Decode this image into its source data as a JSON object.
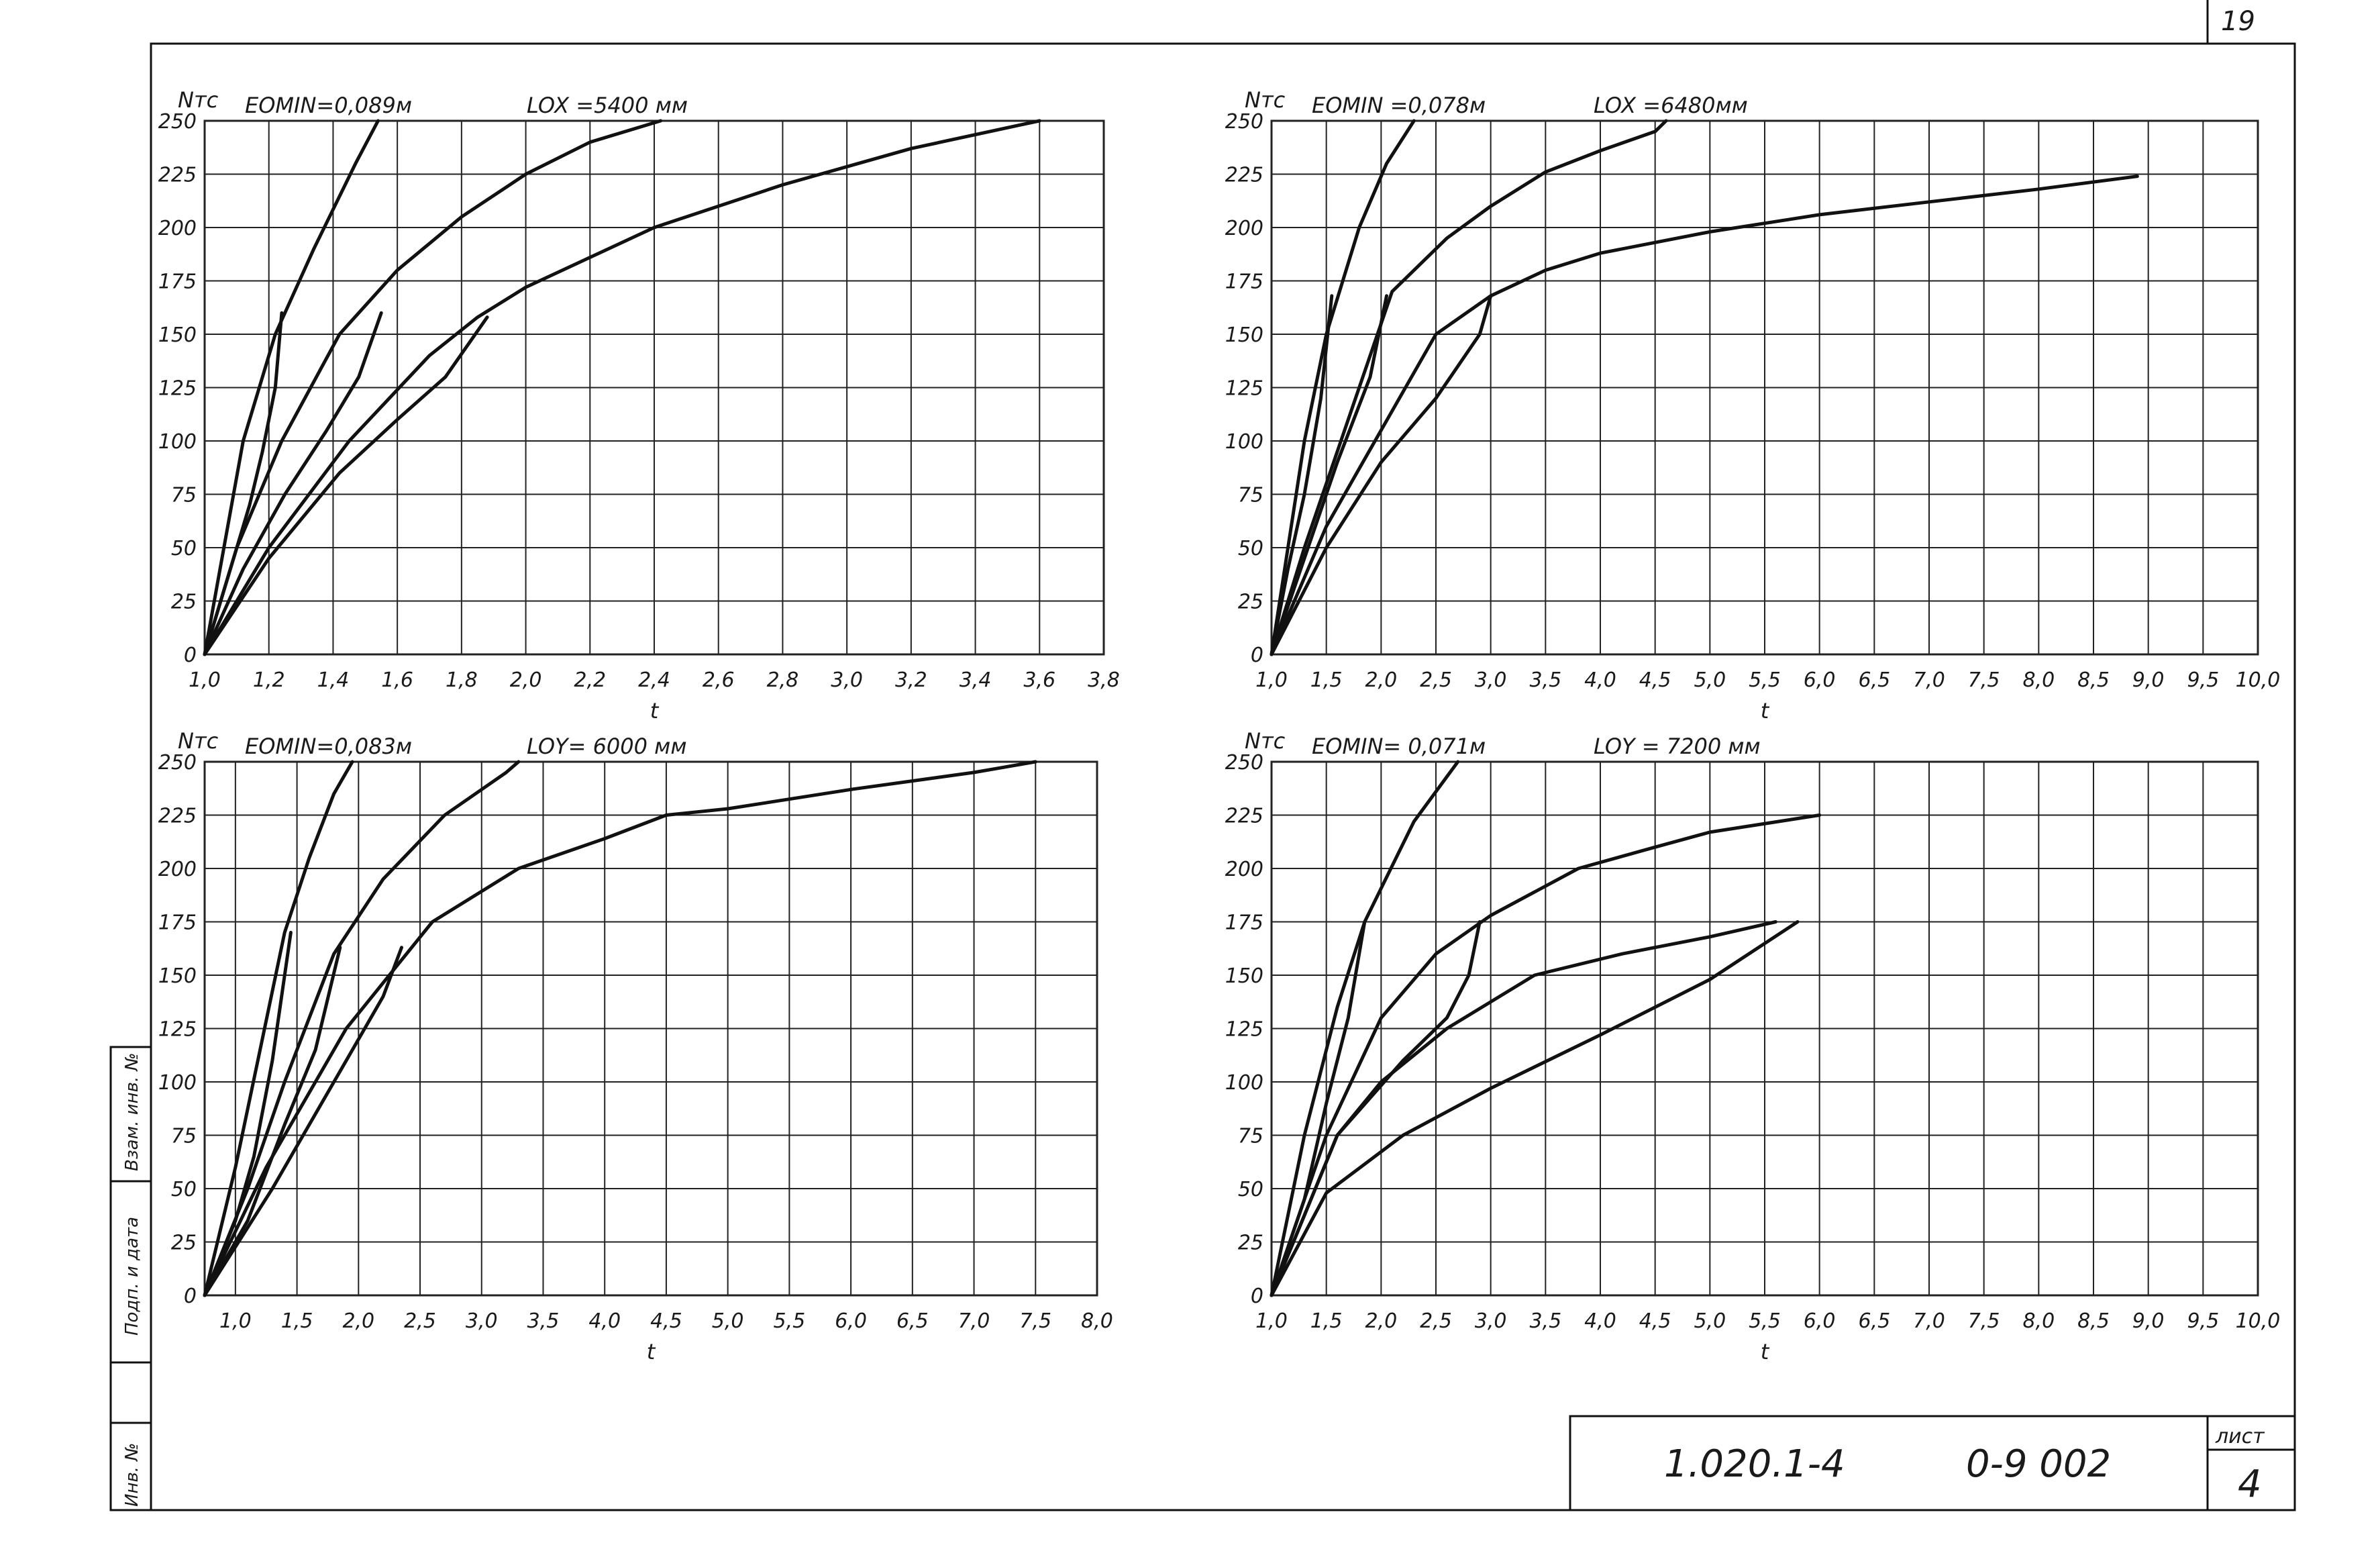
{
  "sheet": {
    "page_number": "19",
    "doc_code": "1.020.1-4",
    "doc_series": "0-9 002",
    "sheet_label": "лист",
    "sheet_number": "4",
    "stamp_labels": [
      "Инв. №",
      "Подп. и дата",
      "Взам. инв. №"
    ]
  },
  "chart_data": [
    {
      "type": "line",
      "ylabel": "Nтс",
      "xlabel": "t",
      "param1": "EOMIN=0,089м",
      "param2": "LOX =5400 мм",
      "xlim": [
        1.0,
        3.8
      ],
      "ylim": [
        0,
        250
      ],
      "x_ticks": [
        "1,0",
        "1,2",
        "1,4",
        "1,6",
        "1,8",
        "2,0",
        "2,2",
        "2,4",
        "2,6",
        "2,8",
        "3,0",
        "3,2",
        "3,4",
        "3,6",
        "3,8"
      ],
      "y_ticks": [
        "0",
        "25",
        "50",
        "75",
        "100",
        "125",
        "150",
        "175",
        "200",
        "225",
        "250"
      ],
      "series": [
        {
          "points": [
            [
              1.0,
              0
            ],
            [
              1.06,
              50
            ],
            [
              1.12,
              100
            ],
            [
              1.17,
              125
            ],
            [
              1.22,
              150
            ],
            [
              1.34,
              190
            ],
            [
              1.47,
              230
            ],
            [
              1.54,
              250
            ]
          ]
        },
        {
          "points": [
            [
              1.0,
              0
            ],
            [
              1.1,
              50
            ],
            [
              1.24,
              100
            ],
            [
              1.42,
              150
            ],
            [
              1.6,
              180
            ],
            [
              1.8,
              205
            ],
            [
              2.0,
              225
            ],
            [
              2.2,
              240
            ],
            [
              2.42,
              250
            ]
          ]
        },
        {
          "points": [
            [
              1.0,
              0
            ],
            [
              1.2,
              50
            ],
            [
              1.45,
              100
            ],
            [
              1.7,
              140
            ],
            [
              1.85,
              158
            ],
            [
              2.0,
              172
            ],
            [
              2.4,
              200
            ],
            [
              2.8,
              220
            ],
            [
              3.2,
              237
            ],
            [
              3.6,
              250
            ]
          ]
        },
        {
          "points": [
            [
              1.0,
              0
            ],
            [
              1.05,
              25
            ],
            [
              1.1,
              50
            ],
            [
              1.14,
              70
            ],
            [
              1.18,
              95
            ],
            [
              1.22,
              125
            ],
            [
              1.24,
              160
            ]
          ]
        },
        {
          "points": [
            [
              1.0,
              0
            ],
            [
              1.12,
              40
            ],
            [
              1.25,
              75
            ],
            [
              1.38,
              105
            ],
            [
              1.48,
              130
            ],
            [
              1.55,
              160
            ]
          ]
        },
        {
          "points": [
            [
              1.0,
              0
            ],
            [
              1.2,
              45
            ],
            [
              1.42,
              85
            ],
            [
              1.6,
              110
            ],
            [
              1.75,
              130
            ],
            [
              1.88,
              158
            ]
          ]
        }
      ]
    },
    {
      "type": "line",
      "ylabel": "Nтс",
      "xlabel": "t",
      "param1": "EOMIN =0,078м",
      "param2": "LOX =6480мм",
      "xlim": [
        1.0,
        10.0
      ],
      "ylim": [
        0,
        250
      ],
      "x_ticks": [
        "1,0",
        "1,5",
        "2,0",
        "2,5",
        "3,0",
        "3,5",
        "4,0",
        "4,5",
        "5,0",
        "5,5",
        "6,0",
        "6,5",
        "7,0",
        "7,5",
        "8,0",
        "8,5",
        "9,0",
        "9,5",
        "10,0"
      ],
      "y_ticks": [
        "0",
        "25",
        "50",
        "75",
        "100",
        "125",
        "150",
        "175",
        "200",
        "225",
        "250"
      ],
      "series": [
        {
          "points": [
            [
              1.0,
              0
            ],
            [
              1.15,
              50
            ],
            [
              1.3,
              100
            ],
            [
              1.5,
              150
            ],
            [
              1.8,
              200
            ],
            [
              2.05,
              230
            ],
            [
              2.3,
              250
            ]
          ]
        },
        {
          "points": [
            [
              1.0,
              0
            ],
            [
              1.3,
              50
            ],
            [
              1.7,
              110
            ],
            [
              2.1,
              170
            ],
            [
              2.6,
              195
            ],
            [
              3.0,
              210
            ],
            [
              3.5,
              226
            ],
            [
              4.0,
              236
            ],
            [
              4.5,
              245
            ],
            [
              4.6,
              250
            ]
          ]
        },
        {
          "points": [
            [
              1.0,
              0
            ],
            [
              1.5,
              60
            ],
            [
              2.0,
              105
            ],
            [
              2.5,
              150
            ],
            [
              3.0,
              168
            ],
            [
              3.5,
              180
            ],
            [
              4.0,
              188
            ],
            [
              5.0,
              198
            ],
            [
              6.0,
              206
            ],
            [
              7.0,
              212
            ],
            [
              8.0,
              218
            ],
            [
              8.9,
              224
            ]
          ]
        },
        {
          "points": [
            [
              1.0,
              0
            ],
            [
              1.15,
              40
            ],
            [
              1.3,
              75
            ],
            [
              1.45,
              120
            ],
            [
              1.55,
              168
            ]
          ]
        },
        {
          "points": [
            [
              1.0,
              0
            ],
            [
              1.3,
              45
            ],
            [
              1.6,
              90
            ],
            [
              1.9,
              130
            ],
            [
              2.05,
              168
            ]
          ]
        },
        {
          "points": [
            [
              1.0,
              0
            ],
            [
              1.5,
              50
            ],
            [
              2.0,
              90
            ],
            [
              2.5,
              120
            ],
            [
              2.9,
              150
            ],
            [
              3.0,
              168
            ]
          ]
        }
      ]
    },
    {
      "type": "line",
      "ylabel": "Nтс",
      "xlabel": "t",
      "param1": "EOMIN=0,083м",
      "param2": "LOY= 6000 мм",
      "xlim": [
        0.75,
        8.0
      ],
      "ylim": [
        0,
        250
      ],
      "x_ticks": [
        "1,0",
        "1,5",
        "2,0",
        "2,5",
        "3,0",
        "3,5",
        "4,0",
        "4,5",
        "5,0",
        "5,5",
        "6,0",
        "6,5",
        "7,0",
        "7,5",
        "8,0"
      ],
      "y_ticks": [
        "0",
        "25",
        "50",
        "75",
        "100",
        "125",
        "150",
        "175",
        "200",
        "225",
        "250"
      ],
      "series": [
        {
          "points": [
            [
              0.75,
              0
            ],
            [
              1.0,
              60
            ],
            [
              1.2,
              115
            ],
            [
              1.4,
              170
            ],
            [
              1.6,
              205
            ],
            [
              1.8,
              235
            ],
            [
              1.95,
              250
            ]
          ]
        },
        {
          "points": [
            [
              0.75,
              0
            ],
            [
              1.1,
              50
            ],
            [
              1.4,
              100
            ],
            [
              1.8,
              160
            ],
            [
              2.2,
              195
            ],
            [
              2.7,
              225
            ],
            [
              3.2,
              245
            ],
            [
              3.3,
              250
            ]
          ]
        },
        {
          "points": [
            [
              0.75,
              0
            ],
            [
              1.25,
              60
            ],
            [
              1.9,
              125
            ],
            [
              2.6,
              175
            ],
            [
              3.3,
              200
            ],
            [
              4.0,
              214
            ],
            [
              4.5,
              225
            ],
            [
              5.0,
              228
            ],
            [
              6.0,
              237
            ],
            [
              7.0,
              245
            ],
            [
              7.5,
              250
            ]
          ]
        },
        {
          "points": [
            [
              0.75,
              0
            ],
            [
              1.0,
              35
            ],
            [
              1.15,
              65
            ],
            [
              1.3,
              110
            ],
            [
              1.45,
              170
            ]
          ]
        },
        {
          "points": [
            [
              0.75,
              0
            ],
            [
              1.1,
              35
            ],
            [
              1.4,
              80
            ],
            [
              1.65,
              115
            ],
            [
              1.85,
              163
            ]
          ]
        },
        {
          "points": [
            [
              0.75,
              0
            ],
            [
              1.3,
              50
            ],
            [
              1.9,
              110
            ],
            [
              2.2,
              140
            ],
            [
              2.35,
              163
            ]
          ]
        }
      ]
    },
    {
      "type": "line",
      "ylabel": "Nтс",
      "xlabel": "t",
      "param1": "EOMIN= 0,071м",
      "param2": "LOY = 7200 мм",
      "xlim": [
        1.0,
        10.0
      ],
      "ylim": [
        0,
        250
      ],
      "x_ticks": [
        "1,0",
        "1,5",
        "2,0",
        "2,5",
        "3,0",
        "3,5",
        "4,0",
        "4,5",
        "5,0",
        "5,5",
        "6,0",
        "6,5",
        "7,0",
        "7,5",
        "8,0",
        "8,5",
        "9,0",
        "9,5",
        "10,0"
      ],
      "y_ticks": [
        "0",
        "25",
        "50",
        "75",
        "100",
        "125",
        "150",
        "175",
        "200",
        "225",
        "250"
      ],
      "series": [
        {
          "points": [
            [
              1.0,
              0
            ],
            [
              1.3,
              75
            ],
            [
              1.6,
              135
            ],
            [
              1.85,
              175
            ],
            [
              2.3,
              222
            ],
            [
              2.7,
              250
            ]
          ]
        },
        {
          "points": [
            [
              1.0,
              0
            ],
            [
              1.5,
              75
            ],
            [
              2.0,
              130
            ],
            [
              2.5,
              160
            ],
            [
              3.0,
              178
            ],
            [
              3.8,
              200
            ],
            [
              4.5,
              210
            ],
            [
              5.0,
              217
            ],
            [
              6.0,
              225
            ]
          ]
        },
        {
          "points": [
            [
              1.0,
              0
            ],
            [
              1.6,
              75
            ],
            [
              2.0,
              100
            ],
            [
              2.6,
              125
            ],
            [
              3.4,
              150
            ],
            [
              4.2,
              160
            ],
            [
              5.0,
              168
            ],
            [
              5.6,
              175
            ]
          ]
        },
        {
          "points": [
            [
              1.0,
              0
            ],
            [
              1.3,
              45
            ],
            [
              1.5,
              90
            ],
            [
              1.7,
              130
            ],
            [
              1.85,
              175
            ]
          ]
        },
        {
          "points": [
            [
              1.0,
              0
            ],
            [
              1.6,
              75
            ],
            [
              2.2,
              110
            ],
            [
              2.6,
              130
            ],
            [
              2.8,
              150
            ],
            [
              2.9,
              175
            ]
          ]
        },
        {
          "points": [
            [
              1.0,
              0
            ],
            [
              1.5,
              48
            ],
            [
              2.2,
              75
            ],
            [
              3.0,
              97
            ],
            [
              4.0,
              122
            ],
            [
              5.0,
              148
            ],
            [
              5.8,
              175
            ]
          ]
        }
      ]
    }
  ]
}
